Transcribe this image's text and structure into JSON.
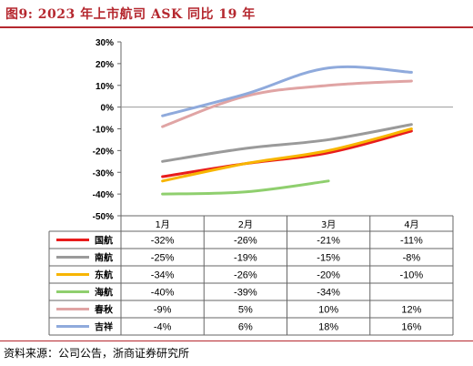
{
  "title": "图9:  2023 年上市航司 ASK 同比 19 年",
  "source": "资料来源：公司公告，浙商证券研究所",
  "chart_data": {
    "type": "line",
    "categories": [
      "1月",
      "2月",
      "3月",
      "4月"
    ],
    "ylim": [
      -50,
      30
    ],
    "yticks": [
      "-50%",
      "-40%",
      "-30%",
      "-20%",
      "-10%",
      "0%",
      "10%",
      "20%",
      "30%"
    ],
    "grid": false,
    "legend": "table-below",
    "series": [
      {
        "name": "国航",
        "color": "#e81c1c",
        "values": [
          -32,
          -26,
          -21,
          -11
        ],
        "labels": [
          "-32%",
          "-26%",
          "-21%",
          "-11%"
        ]
      },
      {
        "name": "南航",
        "color": "#9a9a9a",
        "values": [
          -25,
          -19,
          -15,
          -8
        ],
        "labels": [
          "-25%",
          "-19%",
          "-15%",
          "-8%"
        ]
      },
      {
        "name": "东航",
        "color": "#f7b500",
        "values": [
          -34,
          -26,
          -20,
          -10
        ],
        "labels": [
          "-34%",
          "-26%",
          "-20%",
          "-10%"
        ]
      },
      {
        "name": "海航",
        "color": "#8fcf6e",
        "values": [
          -40,
          -39,
          -34,
          null
        ],
        "labels": [
          "-40%",
          "-39%",
          "-34%",
          ""
        ]
      },
      {
        "name": "春秋",
        "color": "#e0a4a4",
        "values": [
          -9,
          5,
          10,
          12
        ],
        "labels": [
          "-9%",
          "5%",
          "10%",
          "12%"
        ]
      },
      {
        "name": "吉祥",
        "color": "#8faadc",
        "values": [
          -4,
          6,
          18,
          16
        ],
        "labels": [
          "-4%",
          "6%",
          "18%",
          "16%"
        ]
      }
    ]
  }
}
